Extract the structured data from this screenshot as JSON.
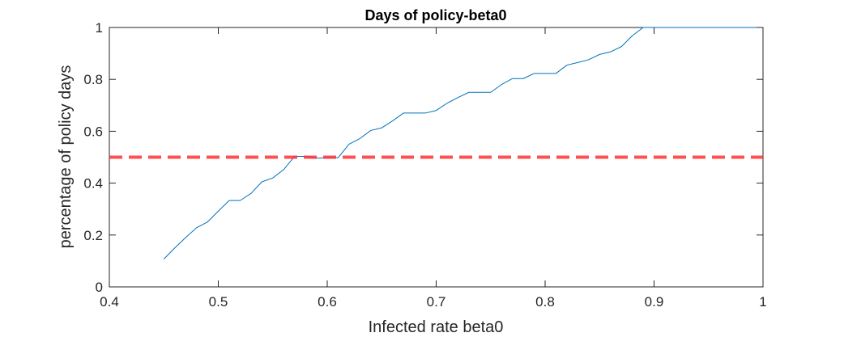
{
  "chart_data": {
    "type": "line",
    "title": "Days of policy-beta0",
    "xlabel": "Infected rate beta0",
    "ylabel": "percentage of policy days",
    "xlim": [
      0.4,
      1
    ],
    "ylim": [
      0,
      1
    ],
    "xticks": [
      0.4,
      0.5,
      0.6,
      0.7,
      0.8,
      0.9,
      1
    ],
    "xtick_labels": [
      "0.4",
      "0.5",
      "0.6",
      "0.7",
      "0.8",
      "0.9",
      "1"
    ],
    "yticks": [
      0,
      0.2,
      0.4,
      0.6,
      0.8,
      1
    ],
    "ytick_labels": [
      "0",
      "0.2",
      "0.4",
      "0.6",
      "0.8",
      "1"
    ],
    "grid": false,
    "series": [
      {
        "color": "#0072BD",
        "style": "solid",
        "x": [
          0.45,
          0.46,
          0.47,
          0.48,
          0.49,
          0.5,
          0.51,
          0.52,
          0.53,
          0.54,
          0.55,
          0.56,
          0.57,
          0.58,
          0.59,
          0.6,
          0.61,
          0.62,
          0.63,
          0.64,
          0.65,
          0.66,
          0.67,
          0.68,
          0.69,
          0.7,
          0.71,
          0.72,
          0.73,
          0.74,
          0.75,
          0.76,
          0.77,
          0.78,
          0.79,
          0.8,
          0.81,
          0.82,
          0.83,
          0.84,
          0.85,
          0.86,
          0.87,
          0.88,
          0.89,
          0.9,
          0.91,
          0.92,
          0.93,
          0.94,
          0.95,
          0.96,
          0.97,
          0.98,
          0.99,
          1.0
        ],
        "y": [
          0.107,
          0.15,
          0.19,
          0.228,
          0.25,
          0.292,
          0.333,
          0.333,
          0.36,
          0.405,
          0.42,
          0.452,
          0.503,
          0.503,
          0.496,
          0.498,
          0.498,
          0.55,
          0.572,
          0.603,
          0.613,
          0.64,
          0.67,
          0.67,
          0.67,
          0.68,
          0.708,
          0.73,
          0.75,
          0.75,
          0.75,
          0.78,
          0.803,
          0.803,
          0.823,
          0.823,
          0.823,
          0.855,
          0.865,
          0.876,
          0.896,
          0.906,
          0.926,
          0.968,
          1.0,
          1.0,
          1.0,
          1.0,
          1.0,
          1.0,
          1.0,
          1.0,
          1.0,
          1.0,
          1.0,
          1.0
        ]
      },
      {
        "color": "#FF3030",
        "style": "dashed",
        "x": [
          0.4,
          1.0
        ],
        "y": [
          0.5,
          0.5
        ]
      }
    ]
  }
}
